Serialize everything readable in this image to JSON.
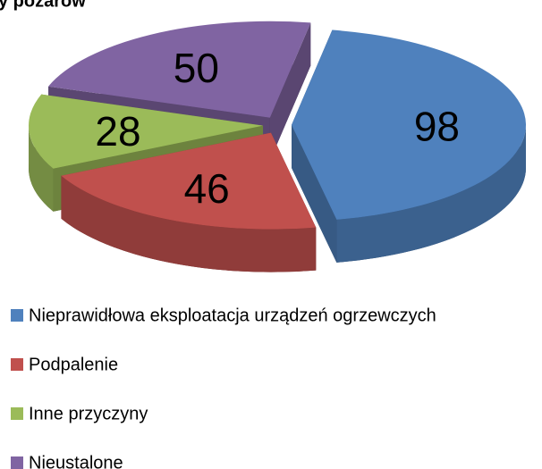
{
  "chart_data": {
    "type": "pie",
    "title": "y pożarów",
    "categories": [
      "Nieprawidłowa eksploatacja urządzeń ogrzewczych",
      "Podpalenie",
      "Inne przyczyny",
      "Nieustalone"
    ],
    "values": [
      98,
      46,
      28,
      50
    ],
    "colors": [
      "#4f81bd",
      "#c0504d",
      "#9bbb59",
      "#8064a2"
    ],
    "legend": "bottom"
  }
}
